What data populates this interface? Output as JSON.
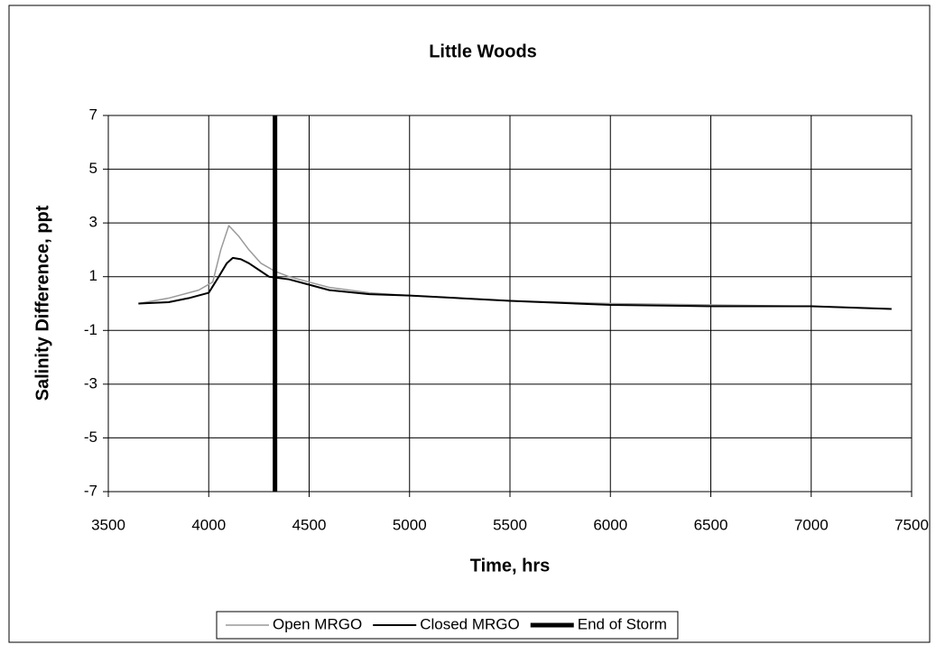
{
  "chart_data": {
    "type": "line",
    "title": "Little Woods",
    "xlabel": "Time, hrs",
    "ylabel": "Salinity Difference, ppt",
    "xlim": [
      3500,
      7500
    ],
    "ylim": [
      -7,
      7
    ],
    "xticks": [
      3500,
      4000,
      4500,
      5000,
      5500,
      6000,
      6500,
      7000,
      7500
    ],
    "yticks": [
      -7,
      -5,
      -3,
      -1,
      1,
      3,
      5,
      7
    ],
    "grid": true,
    "legend": "bottom",
    "series": [
      {
        "name": "Open MRGO",
        "color": "#9a9a9a",
        "width": 1.5,
        "x": [
          3650,
          3800,
          3950,
          4020,
          4060,
          4100,
          4150,
          4200,
          4260,
          4330,
          4400,
          4500,
          4600,
          4800,
          5000,
          5500,
          6000,
          6500,
          7000,
          7400
        ],
        "values": [
          0,
          0.2,
          0.5,
          0.8,
          2.0,
          2.9,
          2.5,
          2.0,
          1.5,
          1.2,
          1.0,
          0.8,
          0.6,
          0.4,
          0.3,
          0.1,
          0,
          -0.05,
          -0.1,
          -0.2
        ]
      },
      {
        "name": "Closed MRGO",
        "color": "#000000",
        "width": 2,
        "x": [
          3650,
          3800,
          3900,
          4000,
          4050,
          4090,
          4120,
          4160,
          4200,
          4260,
          4300,
          4400,
          4500,
          4600,
          4800,
          5000,
          5500,
          6000,
          6500,
          7000,
          7400
        ],
        "values": [
          0,
          0.05,
          0.2,
          0.4,
          1.0,
          1.5,
          1.7,
          1.65,
          1.5,
          1.2,
          1.0,
          0.9,
          0.7,
          0.5,
          0.35,
          0.3,
          0.1,
          -0.05,
          -0.1,
          -0.1,
          -0.2
        ]
      },
      {
        "name": "End of Storm",
        "color": "#000000",
        "width": 5,
        "x": [
          4330,
          4330
        ],
        "values": [
          7,
          -7
        ]
      }
    ]
  }
}
